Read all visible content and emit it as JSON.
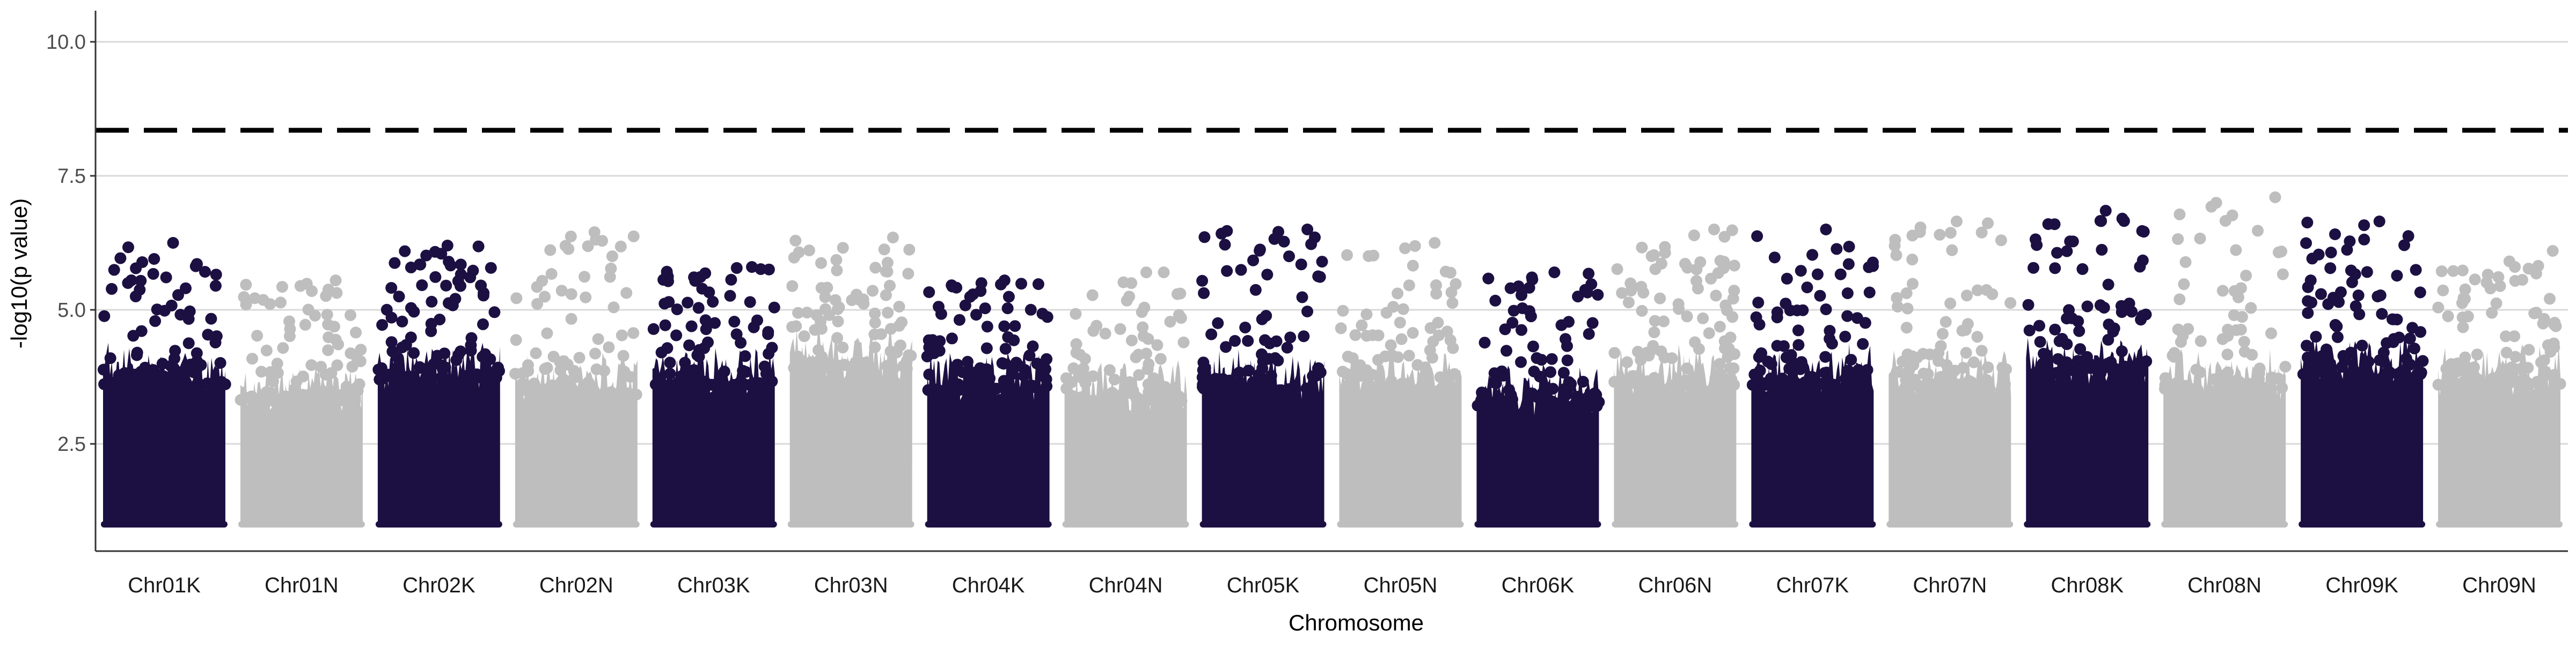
{
  "chart_data": {
    "type": "scatter",
    "subtype": "manhattan",
    "title": "",
    "xlabel": "Chromosome",
    "ylabel": "-log10(p value)",
    "ylim": [
      0.5,
      10.5
    ],
    "y_ticks": [
      2.5,
      5.0,
      7.5,
      10.0
    ],
    "y_tick_labels": [
      "2.5",
      "5.0",
      "7.5",
      "10.0"
    ],
    "grid": "horizontal major lines",
    "legend": "none",
    "significance_threshold": 8.35,
    "colors": {
      "odd_chromosome": "#1c1042",
      "even_chromosome": "#bebebe",
      "threshold_line": "#000000",
      "grid": "#d9d9d9",
      "axis": "#333333"
    },
    "floor_value": 1.0,
    "chromosomes": [
      {
        "name": "Chr01K",
        "color": "#1c1042",
        "dense_top": 3.9,
        "scattered_max": 6.25
      },
      {
        "name": "Chr01N",
        "color": "#bebebe",
        "dense_top": 3.6,
        "scattered_max": 5.55
      },
      {
        "name": "Chr02K",
        "color": "#1c1042",
        "dense_top": 4.0,
        "scattered_max": 6.2
      },
      {
        "name": "Chr02N",
        "color": "#bebebe",
        "dense_top": 3.7,
        "scattered_max": 6.45
      },
      {
        "name": "Chr03K",
        "color": "#1c1042",
        "dense_top": 3.9,
        "scattered_max": 5.8
      },
      {
        "name": "Chr03N",
        "color": "#bebebe",
        "dense_top": 4.2,
        "scattered_max": 6.35
      },
      {
        "name": "Chr04K",
        "color": "#1c1042",
        "dense_top": 3.8,
        "scattered_max": 5.55
      },
      {
        "name": "Chr04N",
        "color": "#bebebe",
        "dense_top": 3.6,
        "scattered_max": 5.7
      },
      {
        "name": "Chr05K",
        "color": "#1c1042",
        "dense_top": 3.8,
        "scattered_max": 6.5
      },
      {
        "name": "Chr05N",
        "color": "#bebebe",
        "dense_top": 3.8,
        "scattered_max": 6.25
      },
      {
        "name": "Chr06K",
        "color": "#1c1042",
        "dense_top": 3.5,
        "scattered_max": 5.7
      },
      {
        "name": "Chr06N",
        "color": "#bebebe",
        "dense_top": 3.9,
        "scattered_max": 6.5
      },
      {
        "name": "Chr07K",
        "color": "#1c1042",
        "dense_top": 3.9,
        "scattered_max": 6.5
      },
      {
        "name": "Chr07N",
        "color": "#bebebe",
        "dense_top": 3.8,
        "scattered_max": 6.65
      },
      {
        "name": "Chr08K",
        "color": "#1c1042",
        "dense_top": 4.1,
        "scattered_max": 6.85
      },
      {
        "name": "Chr08N",
        "color": "#bebebe",
        "dense_top": 3.8,
        "scattered_max": 7.1
      },
      {
        "name": "Chr09K",
        "color": "#1c1042",
        "dense_top": 4.1,
        "scattered_max": 6.65
      },
      {
        "name": "Chr09N",
        "color": "#bebebe",
        "dense_top": 3.9,
        "scattered_max": 6.1
      }
    ]
  }
}
